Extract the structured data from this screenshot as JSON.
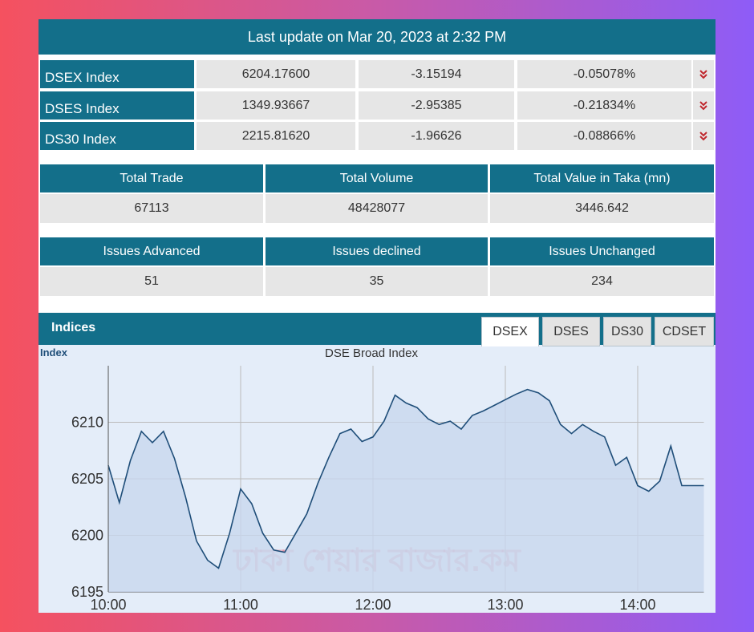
{
  "header": {
    "title": "Last update on Mar 20, 2023 at 2:32 PM"
  },
  "indices": [
    {
      "name": "DSEX Index",
      "value": "6204.17600",
      "change": "-3.15194",
      "percent": "-0.05078%"
    },
    {
      "name": "DSES Index",
      "value": "1349.93667",
      "change": "-2.95385",
      "percent": "-0.21834%"
    },
    {
      "name": "DS30 Index",
      "value": "2215.81620",
      "change": "-1.96626",
      "percent": "-0.08866%"
    }
  ],
  "summary": {
    "headers": [
      "Total Trade",
      "Total Volume",
      "Total Value in Taka (mn)"
    ],
    "values": [
      "67113",
      "48428077",
      "3446.642"
    ]
  },
  "issues": {
    "headers": [
      "Issues Advanced",
      "Issues declined",
      "Issues Unchanged"
    ],
    "values": [
      "51",
      "35",
      "234"
    ]
  },
  "section": {
    "title": "Indices",
    "tabs": [
      "DSEX",
      "DSES",
      "DS30",
      "CDSET"
    ]
  },
  "watermark": "ঢাকা শেয়ার বাজার.কম",
  "chart_data": {
    "type": "area",
    "title": "DSE Broad Index",
    "y_label": "Index",
    "color": "#1f4e79",
    "fill": "#c8d7ee",
    "x": [
      "10:00",
      "10:05",
      "10:10",
      "10:15",
      "10:20",
      "10:25",
      "10:30",
      "10:35",
      "10:40",
      "10:45",
      "10:50",
      "10:55",
      "11:00",
      "11:05",
      "11:10",
      "11:15",
      "11:20",
      "11:25",
      "11:30",
      "11:35",
      "11:40",
      "11:45",
      "11:50",
      "11:55",
      "12:00",
      "12:05",
      "12:10",
      "12:15",
      "12:20",
      "12:25",
      "12:30",
      "12:35",
      "12:40",
      "12:45",
      "12:50",
      "12:55",
      "13:00",
      "13:05",
      "13:10",
      "13:15",
      "13:20",
      "13:25",
      "13:30",
      "13:35",
      "13:40",
      "13:45",
      "13:50",
      "13:55",
      "14:00",
      "14:05",
      "14:10",
      "14:15",
      "14:20",
      "14:25",
      "14:30"
    ],
    "values": [
      6206.2,
      6202.9,
      6206.6,
      6209.2,
      6208.2,
      6209.2,
      6206.8,
      6203.4,
      6199.5,
      6197.8,
      6197.1,
      6200.2,
      6204.1,
      6202.8,
      6200.2,
      6198.7,
      6198.5,
      6200.2,
      6201.9,
      6204.6,
      6206.9,
      6209.0,
      6209.4,
      6208.3,
      6208.7,
      6210.1,
      6212.4,
      6211.7,
      6211.3,
      6210.3,
      6209.8,
      6210.1,
      6209.4,
      6210.6,
      6211.0,
      6211.5,
      6212.0,
      6212.5,
      6212.9,
      6212.6,
      6211.9,
      6209.8,
      6209.0,
      6209.8,
      6209.2,
      6208.7,
      6206.2,
      6206.9,
      6204.4,
      6203.9,
      6204.8,
      6207.9,
      6204.4,
      6204.4,
      6204.4
    ],
    "xlim": [
      "10:00",
      "14:30"
    ],
    "xticks": [
      "10:00",
      "11:00",
      "12:00",
      "13:00",
      "14:00"
    ],
    "ylim": [
      6195,
      6215
    ],
    "yticks": [
      6195,
      6200,
      6205,
      6210
    ],
    "grid": true
  }
}
